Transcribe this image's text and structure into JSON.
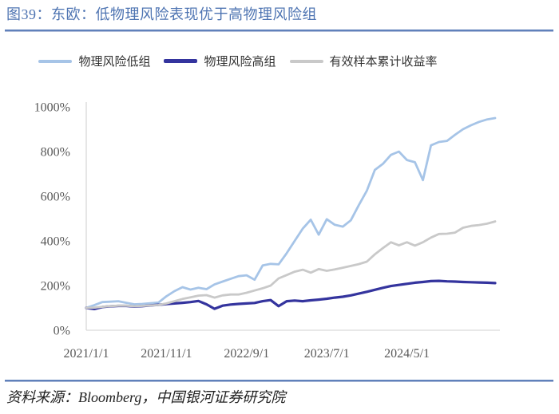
{
  "figure": {
    "title": "图39：东欧：低物理风险表现优于高物理风险组",
    "source": "资料来源：Bloomberg，中国银河证券研究院"
  },
  "colors": {
    "title_blue": "#4e74b2",
    "rule_blue": "#6081bb",
    "axis_line": "#d9d9d9",
    "tick_text": "#595959",
    "legend_text": "#333333"
  },
  "chart_data": {
    "type": "line",
    "title": "东欧：低物理风险表现优于高物理风险组",
    "xlabel": "",
    "ylabel": "",
    "ylim": [
      0,
      1000
    ],
    "y_ticks": [
      "0%",
      "200%",
      "400%",
      "600%",
      "800%",
      "1000%"
    ],
    "grid": false,
    "legend_position": "top",
    "x_tick_labels": [
      "2021/1/1",
      "2021/11/1",
      "2022/9/1",
      "2023/7/1",
      "2024/5/1"
    ],
    "x_tick_indices": [
      0,
      10,
      20,
      30,
      40
    ],
    "x": [
      "2021/1",
      "2021/2",
      "2021/3",
      "2021/4",
      "2021/5",
      "2021/6",
      "2021/7",
      "2021/8",
      "2021/9",
      "2021/10",
      "2021/11",
      "2021/12",
      "2022/1",
      "2022/2",
      "2022/3",
      "2022/4",
      "2022/5",
      "2022/6",
      "2022/7",
      "2022/8",
      "2022/9",
      "2022/10",
      "2022/11",
      "2022/12",
      "2023/1",
      "2023/2",
      "2023/3",
      "2023/4",
      "2023/5",
      "2023/6",
      "2023/7",
      "2023/8",
      "2023/9",
      "2023/10",
      "2023/11",
      "2023/12",
      "2024/1",
      "2024/2",
      "2024/3",
      "2024/4",
      "2024/5",
      "2024/6",
      "2024/7",
      "2024/8",
      "2024/9",
      "2024/10",
      "2024/11",
      "2024/12",
      "2025/1",
      "2025/2",
      "2025/3",
      "2025/4"
    ],
    "y_unit": "%",
    "series": [
      {
        "key": "low",
        "name": "物理风险低组",
        "color": "#a6c4e7",
        "values": [
          100,
          112,
          126,
          128,
          130,
          123,
          116,
          118,
          121,
          124,
          152,
          175,
          193,
          182,
          190,
          184,
          205,
          218,
          230,
          242,
          246,
          226,
          290,
          297,
          295,
          345,
          400,
          455,
          495,
          428,
          497,
          472,
          464,
          492,
          560,
          625,
          718,
          745,
          785,
          800,
          762,
          752,
          672,
          828,
          843,
          848,
          875,
          900,
          918,
          933,
          944,
          950
        ]
      },
      {
        "key": "high",
        "name": "物理风险高组",
        "color": "#34349e",
        "values": [
          100,
          95,
          104,
          107,
          109,
          109,
          106,
          108,
          111,
          114,
          117,
          120,
          123,
          126,
          131,
          116,
          96,
          110,
          115,
          118,
          120,
          122,
          130,
          135,
          108,
          130,
          133,
          130,
          134,
          137,
          141,
          146,
          150,
          156,
          164,
          172,
          181,
          190,
          198,
          203,
          208,
          213,
          216,
          220,
          221,
          219,
          218,
          216,
          215,
          214,
          213,
          211
        ]
      },
      {
        "key": "benchmark",
        "name": "有效样本累计收益率",
        "color": "#c9c9c9",
        "values": [
          100,
          101,
          105,
          108,
          110,
          110,
          107,
          109,
          111,
          113,
          120,
          130,
          140,
          147,
          155,
          157,
          146,
          156,
          160,
          160,
          168,
          178,
          188,
          200,
          232,
          247,
          262,
          271,
          258,
          274,
          266,
          272,
          280,
          288,
          296,
          307,
          340,
          368,
          394,
          380,
          394,
          379,
          394,
          415,
          431,
          432,
          437,
          459,
          467,
          471,
          477,
          487
        ]
      }
    ]
  }
}
